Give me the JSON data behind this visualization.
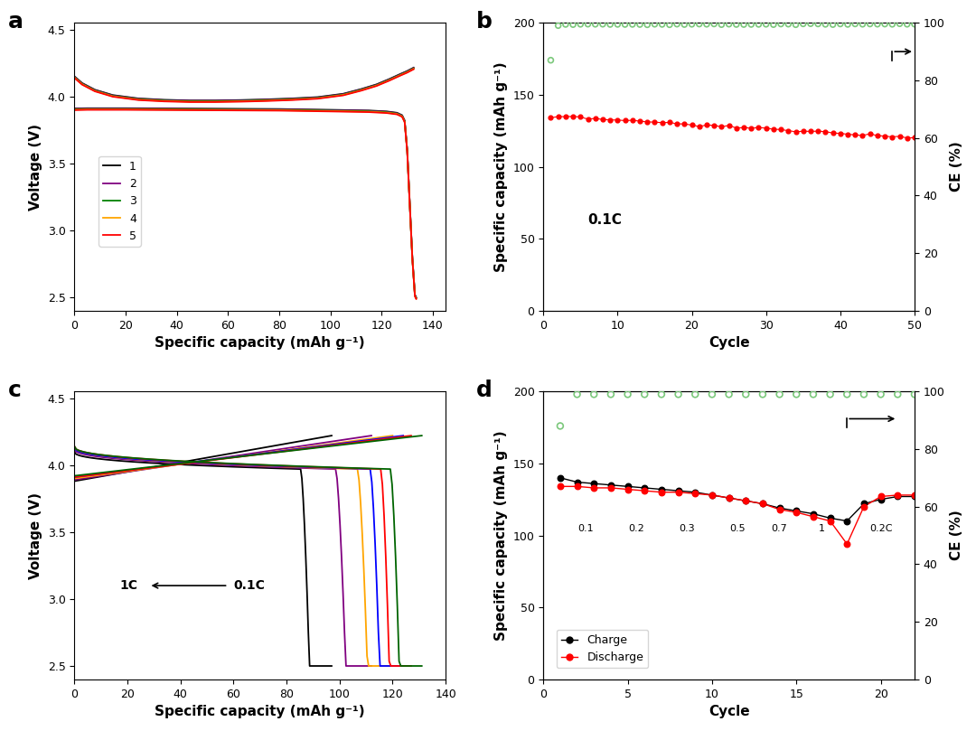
{
  "panel_a": {
    "title": "a",
    "xlabel": "Specific capacity (mAh g⁻¹)",
    "ylabel": "Voltage (V)",
    "xlim": [
      0,
      145
    ],
    "ylim": [
      2.4,
      4.55
    ],
    "xticks": [
      0,
      20,
      40,
      60,
      80,
      100,
      120,
      140
    ],
    "yticks": [
      2.5,
      3.0,
      3.5,
      4.0,
      4.5
    ],
    "legend_labels": [
      "1",
      "2",
      "3",
      "4",
      "5"
    ],
    "legend_colors": [
      "black",
      "purple",
      "green",
      "orange",
      "red"
    ]
  },
  "panel_b": {
    "title": "b",
    "xlabel": "Cycle",
    "ylabel1": "Specific capacity (mAh g⁻¹)",
    "ylabel2": "CE (%)",
    "xlim": [
      0,
      50
    ],
    "ylim1": [
      0,
      200
    ],
    "ylim2": [
      0,
      100
    ],
    "xticks": [
      0,
      10,
      20,
      30,
      40,
      50
    ],
    "yticks1": [
      0,
      50,
      100,
      150,
      200
    ],
    "yticks2": [
      0,
      20,
      40,
      60,
      80,
      100
    ],
    "annotation": "0.1C",
    "capacity_color": "red",
    "ce_color": "#7bc87b"
  },
  "panel_c": {
    "title": "c",
    "xlabel": "Specific capacity (mAh g⁻¹)",
    "ylabel": "Voltage (V)",
    "xlim": [
      0,
      140
    ],
    "ylim": [
      2.4,
      4.55
    ],
    "xticks": [
      0,
      20,
      40,
      60,
      80,
      100,
      120,
      140
    ],
    "yticks": [
      2.5,
      3.0,
      3.5,
      4.0,
      4.5
    ],
    "colors": [
      "black",
      "purple",
      "orange",
      "blue",
      "red",
      "darkgreen"
    ],
    "max_capacities": [
      97,
      112,
      120,
      124,
      127,
      131
    ]
  },
  "panel_d": {
    "title": "d",
    "xlabel": "Cycle",
    "ylabel1": "Specific capacity (mAh g⁻¹)",
    "ylabel2": "CE (%)",
    "xlim": [
      0,
      22
    ],
    "ylim1": [
      0,
      200
    ],
    "ylim2": [
      0,
      100
    ],
    "xticks": [
      0,
      5,
      10,
      15,
      20
    ],
    "yticks1": [
      0,
      50,
      100,
      150,
      200
    ],
    "yticks2": [
      0,
      20,
      40,
      60,
      80,
      100
    ],
    "rate_labels": [
      "0.1",
      "0.2",
      "0.3",
      "0.5",
      "0.7",
      "1",
      "0.2C"
    ],
    "rate_x": [
      2.5,
      5.5,
      8.5,
      11.5,
      14.0,
      16.5,
      20.0
    ],
    "charge_color": "black",
    "discharge_color": "red",
    "ce_color": "#7bc87b",
    "cap_charge": [
      140,
      137,
      136,
      135,
      134,
      133,
      132,
      131,
      130,
      128,
      126,
      124,
      122,
      119,
      117,
      115,
      112,
      110,
      122,
      125,
      127,
      127
    ],
    "cap_disch": [
      134,
      134,
      133,
      133,
      132,
      131,
      130,
      130,
      129,
      128,
      126,
      124,
      122,
      118,
      116,
      113,
      110,
      94,
      120,
      127,
      128,
      128
    ],
    "ce_vals": [
      88,
      99,
      99,
      99,
      99,
      99,
      99,
      99,
      99,
      99,
      99,
      99,
      99,
      99,
      99,
      99,
      99,
      99,
      99,
      99,
      99,
      99
    ]
  },
  "background_color": "white",
  "font_size_label": 11,
  "font_size_tick": 9,
  "font_size_panel": 18
}
